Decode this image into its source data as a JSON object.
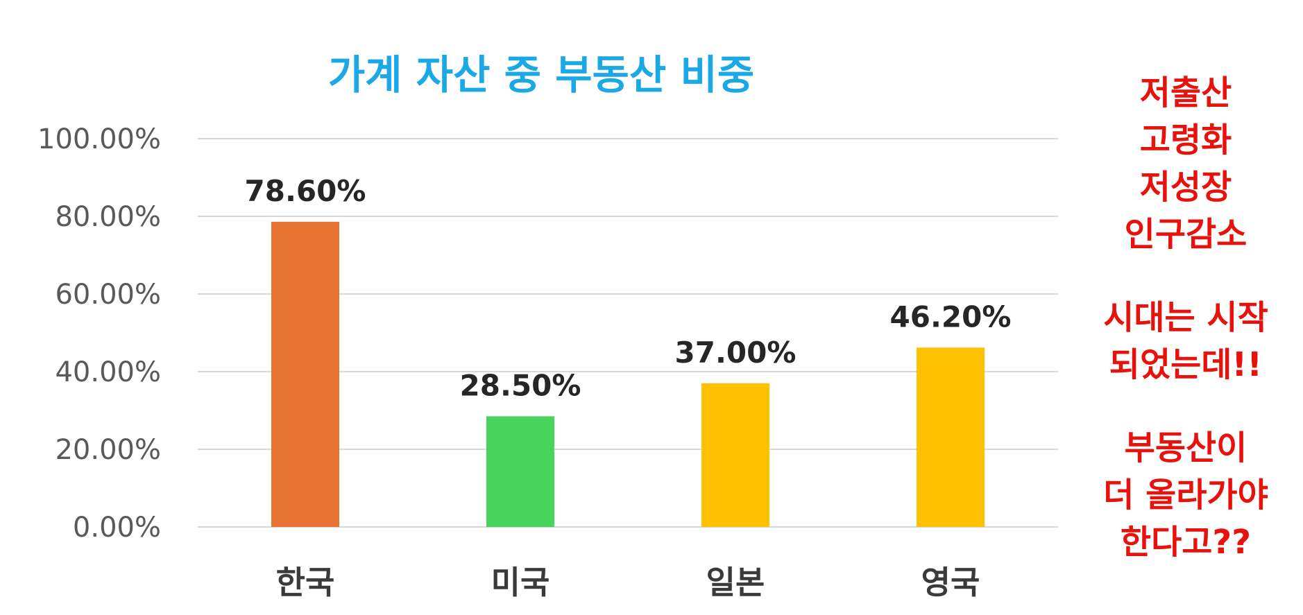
{
  "chart_data": {
    "type": "bar",
    "title": "가계 자산 중 부동산 비중",
    "xlabel": "",
    "ylabel": "",
    "categories": [
      "한국",
      "미국",
      "일본",
      "영국"
    ],
    "values": [
      78.6,
      28.5,
      37.0,
      46.2
    ],
    "value_labels": [
      "78.60%",
      "28.50%",
      "37.00%",
      "46.20%"
    ],
    "bar_colors": [
      "#e87333",
      "#47d35c",
      "#ffc000",
      "#ffc000"
    ],
    "ylim": [
      0,
      100
    ],
    "y_ticks": [
      0,
      20,
      40,
      60,
      80,
      100
    ],
    "y_tick_labels": [
      "0.00%",
      "20.00%",
      "40.00%",
      "60.00%",
      "80.00%",
      "100.00%"
    ],
    "grid": true,
    "legend": "none"
  },
  "side_note": {
    "groups": [
      [
        "저출산",
        "고령화",
        "저성장",
        "인구감소"
      ],
      [
        "시대는 시작",
        "되었는데!!"
      ],
      [
        "부동산이",
        "더 올라가야",
        "한다고??"
      ]
    ],
    "color": "#e8120c"
  },
  "colors": {
    "title": "#1aa9e6",
    "grid": "#d9d9d9",
    "tick_text": "#595959"
  }
}
